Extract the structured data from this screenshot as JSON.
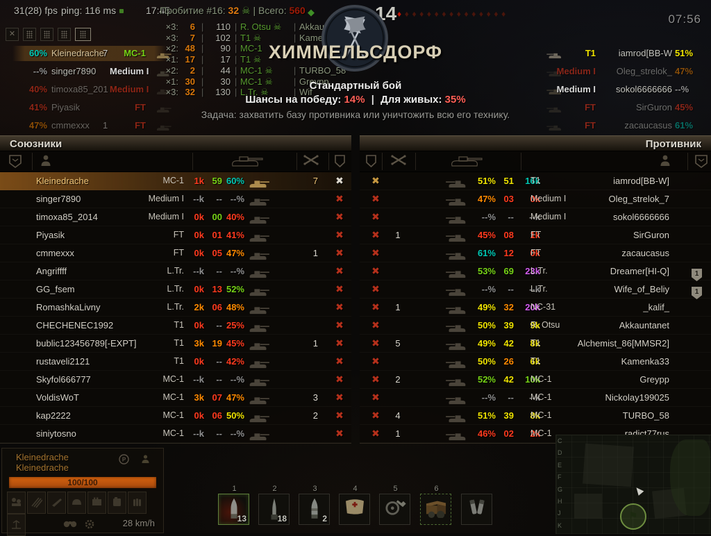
{
  "palette": {
    "red": "#ff3a1e",
    "orange": "#ff8a00",
    "yellow": "#efe300",
    "green": "#76d216",
    "cyan": "#00c8b4",
    "purple": "#d45cf2",
    "gray": "#8f8f8f",
    "white": "#d9d9d9",
    "gold": "#f0c070"
  },
  "hud": {
    "fps": "31(28) fps",
    "ping": "ping: 116 ms",
    "clock": "17:45",
    "hit_label": "Пробитие #16:",
    "hit_value": "32",
    "total_label": "| Всего:",
    "total_value": "560",
    "score_right": "14",
    "battle_timer": "07:56",
    "enemy_kill_diamonds": 15
  },
  "panel_buttons": {
    "close_label": "✕",
    "count": 5,
    "selected_index": 4
  },
  "damage_log": [
    {
      "mult": "×3:",
      "val": "6",
      "dmg": "110",
      "vehicle": "R. Otsu",
      "skull": true,
      "target": "Akkaunt"
    },
    {
      "mult": "×3:",
      "val": "7",
      "dmg": "102",
      "vehicle": "T1",
      "skull": true,
      "target": "Kamenka"
    },
    {
      "mult": "×2:",
      "val": "48",
      "dmg": "90",
      "vehicle": "MC-1",
      "skull": false,
      "target": ""
    },
    {
      "mult": "×1:",
      "val": "17",
      "dmg": "17",
      "vehicle": "T1",
      "skull": true,
      "target": ""
    },
    {
      "mult": "×2:",
      "val": "2",
      "dmg": "44",
      "vehicle": "MC-1",
      "skull": true,
      "target": "TURBO_58"
    },
    {
      "mult": "×1:",
      "val": "30",
      "dmg": "30",
      "vehicle": "MC-1",
      "skull": true,
      "target": "Greypp"
    },
    {
      "mult": "×3:",
      "val": "32",
      "dmg": "130",
      "vehicle": "L.Tr.",
      "skull": true,
      "target": "Wif"
    }
  ],
  "center": {
    "map_name": "ХИММЕЛЬСДОРФ",
    "battle_type": "Стандартный бой",
    "chance_label": "Шансы на победу:",
    "chance_value": "14%",
    "sep": "|",
    "alive_label": "Для живых:",
    "alive_value": "35%",
    "task": "Задача: захватить базу противника или уничтожить всю его технику."
  },
  "allies": {
    "title": "Союзники",
    "rows": [
      {
        "name": "Kleinedrache",
        "vehicle": "MC-1",
        "s1": "1k",
        "s2": "59",
        "s3": "60%",
        "c1": "red",
        "c2": "green",
        "c3": "cyan",
        "frags": "7",
        "self": true
      },
      {
        "name": "singer7890",
        "vehicle": "Medium I",
        "s1": "--k",
        "s2": "--",
        "s3": "--%",
        "c1": "gray",
        "c2": "gray",
        "c3": "gray",
        "frags": ""
      },
      {
        "name": "timoxa85_2014",
        "vehicle": "Medium I",
        "s1": "0k",
        "s2": "00",
        "s3": "40%",
        "c1": "red",
        "c2": "green",
        "c3": "red",
        "frags": ""
      },
      {
        "name": "Piyasik",
        "vehicle": "FT",
        "s1": "0k",
        "s2": "01",
        "s3": "41%",
        "c1": "red",
        "c2": "red",
        "c3": "red",
        "frags": ""
      },
      {
        "name": "cmmexxx",
        "vehicle": "FT",
        "s1": "0k",
        "s2": "05",
        "s3": "47%",
        "c1": "red",
        "c2": "red",
        "c3": "orange",
        "frags": "1"
      },
      {
        "name": "Angriffff",
        "vehicle": "L.Tr.",
        "s1": "--k",
        "s2": "--",
        "s3": "--%",
        "c1": "gray",
        "c2": "gray",
        "c3": "gray",
        "frags": ""
      },
      {
        "name": "GG_fsem",
        "vehicle": "L.Tr.",
        "s1": "0k",
        "s2": "13",
        "s3": "52%",
        "c1": "red",
        "c2": "red",
        "c3": "green",
        "frags": ""
      },
      {
        "name": "RomashkaLivny",
        "vehicle": "L.Tr.",
        "s1": "2k",
        "s2": "06",
        "s3": "48%",
        "c1": "orange",
        "c2": "red",
        "c3": "orange",
        "frags": ""
      },
      {
        "name": "CHECHENEC1992",
        "vehicle": "T1",
        "s1": "0k",
        "s2": "--",
        "s3": "25%",
        "c1": "red",
        "c2": "gray",
        "c3": "red",
        "frags": ""
      },
      {
        "name": "bublic123456789[-EXPT]",
        "vehicle": "T1",
        "s1": "3k",
        "s2": "19",
        "s3": "45%",
        "c1": "orange",
        "c2": "orange",
        "c3": "red",
        "frags": "1"
      },
      {
        "name": "rustaveli2121",
        "vehicle": "T1",
        "s1": "0k",
        "s2": "--",
        "s3": "42%",
        "c1": "red",
        "c2": "gray",
        "c3": "red",
        "frags": ""
      },
      {
        "name": "Skyfol666777",
        "vehicle": "MC-1",
        "s1": "--k",
        "s2": "--",
        "s3": "--%",
        "c1": "gray",
        "c2": "gray",
        "c3": "gray",
        "frags": ""
      },
      {
        "name": "VoldisWoT",
        "vehicle": "MC-1",
        "s1": "3k",
        "s2": "07",
        "s3": "47%",
        "c1": "orange",
        "c2": "red",
        "c3": "orange",
        "frags": "3"
      },
      {
        "name": "kap2222",
        "vehicle": "MC-1",
        "s1": "0k",
        "s2": "06",
        "s3": "50%",
        "c1": "red",
        "c2": "red",
        "c3": "yellow",
        "frags": "2"
      },
      {
        "name": "siniytosno",
        "vehicle": "MC-1",
        "s1": "--k",
        "s2": "--",
        "s3": "--%",
        "c1": "gray",
        "c2": "gray",
        "c3": "gray",
        "frags": ""
      }
    ]
  },
  "enemies": {
    "title": "Противник",
    "rows": [
      {
        "name": "iamrod[BB-W]",
        "vehicle": "T1",
        "s1": "51%",
        "s2": "51",
        "s3": "16k",
        "c1": "yellow",
        "c2": "yellow",
        "c3": "cyan",
        "frags": "",
        "gold_dead": true,
        "platoon": ""
      },
      {
        "name": "Oleg_strelok_7",
        "vehicle": "Medium I",
        "s1": "47%",
        "s2": "03",
        "s3": "0k",
        "c1": "orange",
        "c2": "red",
        "c3": "red",
        "frags": "",
        "platoon": ""
      },
      {
        "name": "sokol6666666",
        "vehicle": "Medium I",
        "s1": "--%",
        "s2": "--",
        "s3": "--k",
        "c1": "gray",
        "c2": "gray",
        "c3": "gray",
        "frags": "",
        "platoon": ""
      },
      {
        "name": "SirGuron",
        "vehicle": "FT",
        "s1": "45%",
        "s2": "08",
        "s3": "1k",
        "c1": "red",
        "c2": "red",
        "c3": "red",
        "frags": "1",
        "platoon": ""
      },
      {
        "name": "zacaucasus",
        "vehicle": "FT",
        "s1": "61%",
        "s2": "12",
        "s3": "0k",
        "c1": "cyan",
        "c2": "red",
        "c3": "red",
        "frags": "",
        "platoon": ""
      },
      {
        "name": "Dreamer[HI-Q]",
        "vehicle": "L.Tr.",
        "s1": "53%",
        "s2": "69",
        "s3": "23k",
        "c1": "green",
        "c2": "green",
        "c3": "purple",
        "frags": "",
        "platoon": "1"
      },
      {
        "name": "Wife_of_Beliy",
        "vehicle": "L.Tr.",
        "s1": "--%",
        "s2": "--",
        "s3": "--k",
        "c1": "gray",
        "c2": "gray",
        "c3": "gray",
        "frags": "",
        "platoon": "1"
      },
      {
        "name": "_kalif_",
        "vehicle": "NC-31",
        "s1": "49%",
        "s2": "32",
        "s3": "20k",
        "c1": "yellow",
        "c2": "orange",
        "c3": "purple",
        "frags": "1",
        "platoon": ""
      },
      {
        "name": "Akkauntanet",
        "vehicle": "R. Otsu",
        "s1": "50%",
        "s2": "39",
        "s3": "9k",
        "c1": "yellow",
        "c2": "yellow",
        "c3": "yellow",
        "frags": "",
        "platoon": ""
      },
      {
        "name": "Alchemist_86[MMSR2]",
        "vehicle": "T1",
        "s1": "49%",
        "s2": "42",
        "s3": "8k",
        "c1": "yellow",
        "c2": "yellow",
        "c3": "yellow",
        "frags": "5",
        "platoon": ""
      },
      {
        "name": "Kamenka33",
        "vehicle": "T1",
        "s1": "50%",
        "s2": "26",
        "s3": "6k",
        "c1": "yellow",
        "c2": "orange",
        "c3": "yellow",
        "frags": "",
        "platoon": ""
      },
      {
        "name": "Greypp",
        "vehicle": "MC-1",
        "s1": "52%",
        "s2": "42",
        "s3": "10k",
        "c1": "green",
        "c2": "yellow",
        "c3": "green",
        "frags": "2",
        "platoon": ""
      },
      {
        "name": "Nickolay199025",
        "vehicle": "MC-1",
        "s1": "--%",
        "s2": "--",
        "s3": "--k",
        "c1": "gray",
        "c2": "gray",
        "c3": "gray",
        "frags": "",
        "platoon": ""
      },
      {
        "name": "TURBO_58",
        "vehicle": "MC-1",
        "s1": "51%",
        "s2": "39",
        "s3": "8k",
        "c1": "yellow",
        "c2": "yellow",
        "c3": "yellow",
        "frags": "4",
        "platoon": ""
      },
      {
        "name": "radict77rus",
        "vehicle": "MC-1",
        "s1": "46%",
        "s2": "02",
        "s3": "2k",
        "c1": "red",
        "c2": "red",
        "c3": "red",
        "frags": "1",
        "platoon": ""
      }
    ]
  },
  "left_side_panel": [
    {
      "pct": "60%",
      "pc": "cyan",
      "name": "Kleinedrache",
      "frags": "7",
      "vehicle": "MC-1",
      "vc": "green",
      "selected": true,
      "dim": false
    },
    {
      "pct": "--%",
      "pc": "gray",
      "name": "singer7890",
      "frags": "",
      "vehicle": "Medium I",
      "vc": "white",
      "selected": false,
      "dim": false
    },
    {
      "pct": "40%",
      "pc": "red",
      "name": "timoxa85_201",
      "frags": "",
      "vehicle": "Medium I",
      "vc": "red",
      "selected": false,
      "dim": true
    },
    {
      "pct": "41%",
      "pc": "red",
      "name": "Piyasik",
      "frags": "",
      "vehicle": "FT",
      "vc": "red",
      "selected": false,
      "dim": true
    },
    {
      "pct": "47%",
      "pc": "orange",
      "name": "cmmexxx",
      "frags": "1",
      "vehicle": "FT",
      "vc": "red",
      "selected": false,
      "dim": true
    }
  ],
  "right_side_panel": [
    {
      "vehicle": "T1",
      "vc": "yellow",
      "name": "iamrod[BB-W",
      "pct": "51%",
      "pc": "yellow",
      "dim": false
    },
    {
      "vehicle": "Medium I",
      "vc": "red",
      "name": "Oleg_strelok_",
      "pct": "47%",
      "pc": "orange",
      "dim": true
    },
    {
      "vehicle": "Medium I",
      "vc": "white",
      "name": "sokol6666666",
      "pct": "--%",
      "pc": "gray",
      "dim": false
    },
    {
      "vehicle": "FT",
      "vc": "red",
      "name": "SirGuron",
      "pct": "45%",
      "pc": "red",
      "dim": true
    },
    {
      "vehicle": "FT",
      "vc": "red",
      "name": "zacaucasus",
      "pct": "61%",
      "pc": "cyan",
      "dim": true
    }
  ],
  "player_panel": {
    "player_name": "Kleinedrache",
    "vehicle_name": "Kleinedrache",
    "hp": "100/100",
    "speed": "28 km/h"
  },
  "consumables": [
    {
      "key": "1",
      "count": "13",
      "type": "shell-ap",
      "selected": true,
      "auto": false
    },
    {
      "key": "2",
      "count": "18",
      "type": "shell-apcr",
      "selected": false,
      "auto": false
    },
    {
      "key": "3",
      "count": "2",
      "type": "shell-he",
      "selected": false,
      "auto": false
    },
    {
      "key": "4",
      "count": "",
      "type": "medkit",
      "selected": false,
      "auto": false
    },
    {
      "key": "5",
      "count": "",
      "type": "repairkit",
      "selected": false,
      "auto": false
    },
    {
      "key": "6",
      "count": "",
      "type": "crate",
      "selected": false,
      "auto": true
    },
    {
      "key": "",
      "count": "",
      "type": "binocular-tubes",
      "selected": false,
      "auto": false
    }
  ],
  "minimap": {
    "grid_letters": [
      "C",
      "D",
      "E",
      "F",
      "G",
      "H",
      "J",
      "K"
    ]
  }
}
